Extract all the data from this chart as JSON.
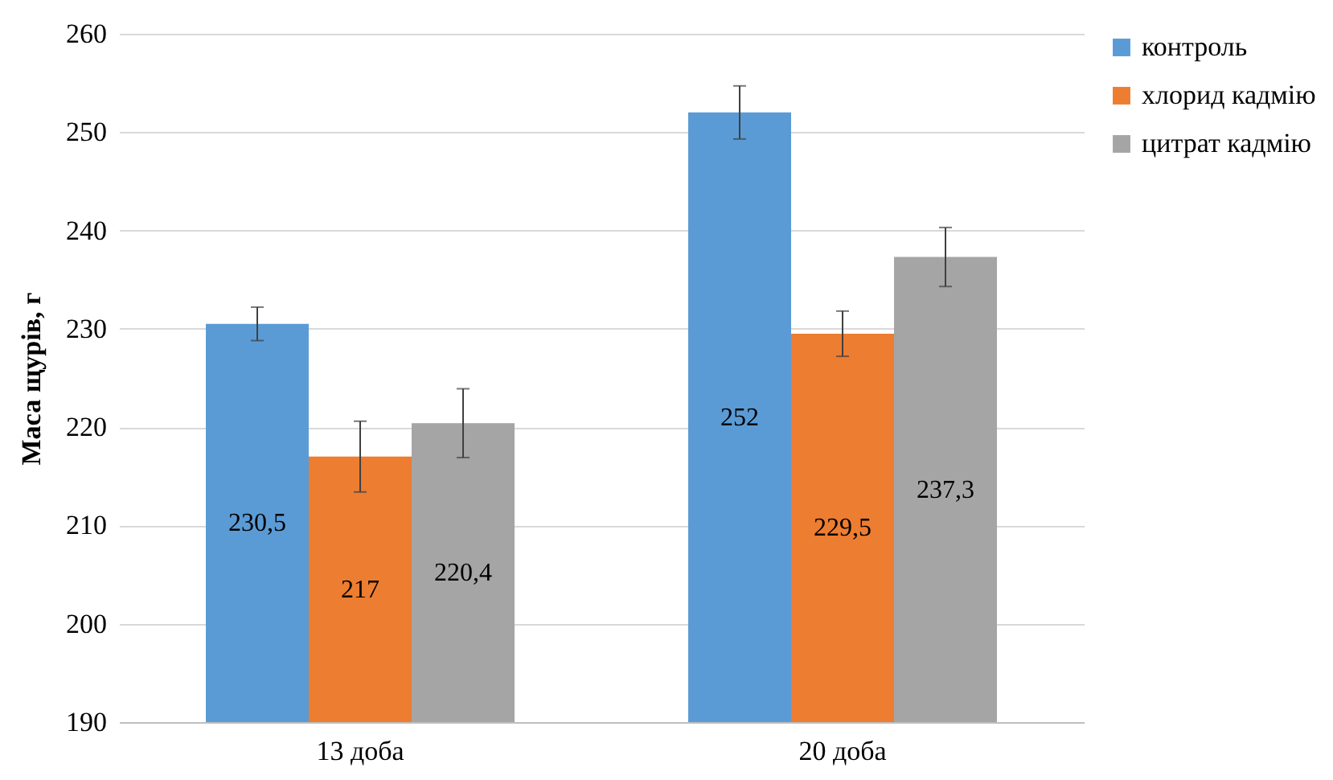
{
  "chart_data": {
    "type": "bar",
    "ylabel": "Маса щурів, г",
    "categories": [
      "13 доба",
      "20 доба"
    ],
    "series": [
      {
        "name": "контроль",
        "color": "#5b9bd5",
        "values": [
          230.5,
          252
        ],
        "errors": [
          1.7,
          2.7
        ],
        "value_labels": [
          "230,5",
          "252"
        ]
      },
      {
        "name": "хлорид кадмію",
        "color": "#ed7d31",
        "values": [
          217,
          229.5
        ],
        "errors": [
          3.6,
          2.3
        ],
        "value_labels": [
          "217",
          "229,5"
        ]
      },
      {
        "name": "цитрат кадмію",
        "color": "#a5a5a5",
        "values": [
          220.4,
          237.3
        ],
        "errors": [
          3.5,
          3
        ],
        "value_labels": [
          "220,4",
          "237,3"
        ]
      }
    ],
    "ylim": [
      190,
      260
    ],
    "yticks": [
      190,
      200,
      210,
      220,
      230,
      240,
      250,
      260
    ],
    "grid": "y",
    "legend": "right"
  }
}
